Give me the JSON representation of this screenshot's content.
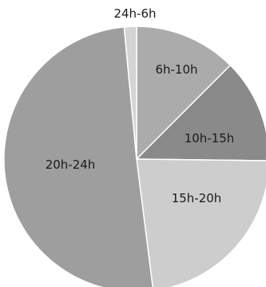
{
  "chart_data": {
    "type": "pie",
    "title": "",
    "slices": [
      {
        "label": "6h-10h",
        "value": 12.5,
        "color": "#ababab"
      },
      {
        "label": "10h-15h",
        "value": 12.7,
        "color": "#8a8a8a"
      },
      {
        "label": "15h-20h",
        "value": 22.8,
        "color": "#cdcdcd"
      },
      {
        "label": "20h-24h",
        "value": 50.5,
        "color": "#9e9e9e"
      },
      {
        "label": "24h-6h",
        "value": 1.5,
        "color": "#d4d4d4"
      }
    ],
    "start_angle_deg": 0,
    "direction": "clockwise",
    "legend": "none"
  }
}
